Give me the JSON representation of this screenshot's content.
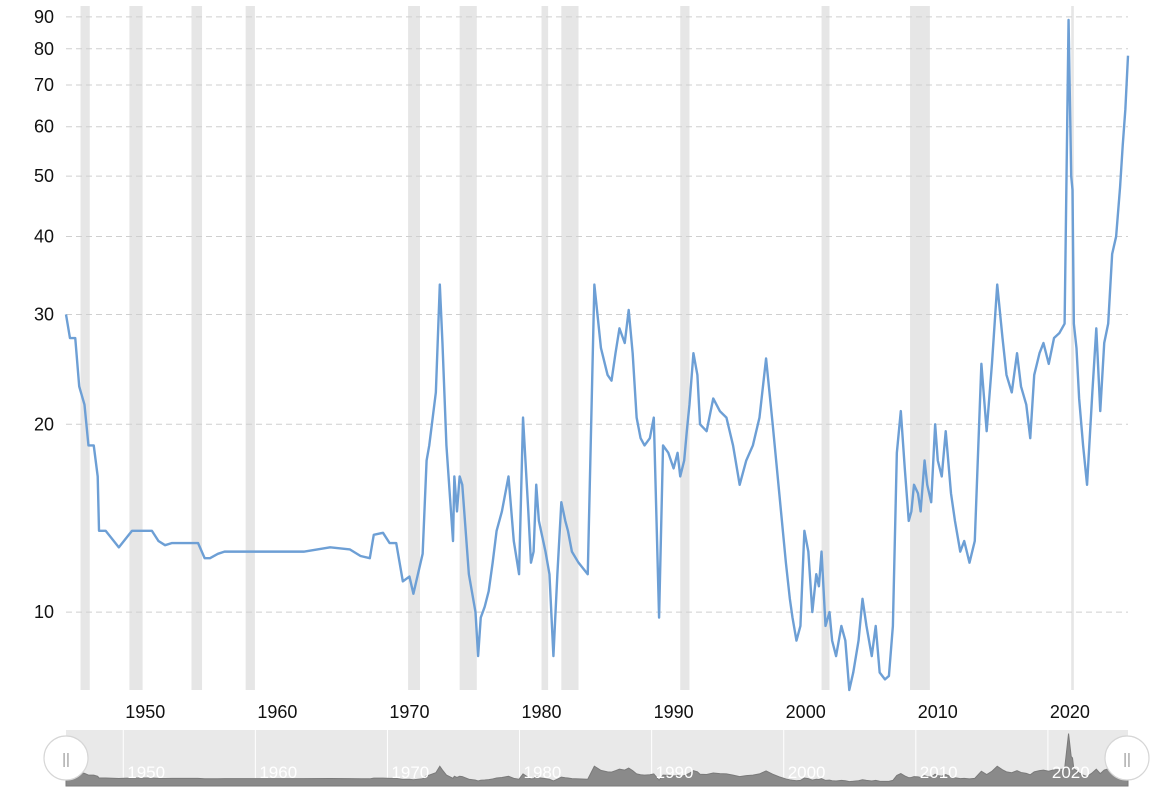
{
  "chart_data": {
    "type": "line",
    "title": "",
    "xlabel": "",
    "ylabel": "",
    "y_scale": "log",
    "xlim": [
      1944,
      2024.4
    ],
    "ylim": [
      7.5,
      93
    ],
    "grid": {
      "y": true,
      "x": false,
      "style": "dashed"
    },
    "legend": "none",
    "x_ticks": [
      1950,
      1960,
      1970,
      1980,
      1990,
      2000,
      2010,
      2020
    ],
    "x_tick_labels": [
      "1950",
      "1960",
      "1970",
      "1980",
      "1990",
      "2000",
      "2010",
      "2020"
    ],
    "y_ticks": [
      10,
      20,
      30,
      40,
      50,
      60,
      70,
      80,
      90
    ],
    "y_tick_labels": [
      "10",
      "20",
      "30",
      "40",
      "50",
      "60",
      "70",
      "80",
      "90"
    ],
    "recession_bands": [
      [
        1945.1,
        1945.8
      ],
      [
        1948.8,
        1949.8
      ],
      [
        1953.5,
        1954.3
      ],
      [
        1957.6,
        1958.3
      ],
      [
        1969.9,
        1970.8
      ],
      [
        1973.8,
        1975.1
      ],
      [
        1980.0,
        1980.5
      ],
      [
        1981.5,
        1982.8
      ],
      [
        1990.5,
        1991.2
      ],
      [
        2001.2,
        2001.8
      ],
      [
        2007.9,
        2009.4
      ],
      [
        2020.1,
        2020.3
      ]
    ],
    "series": [
      {
        "name": "",
        "color": "#6d9fd5",
        "x": [
          1944.0,
          1944.3,
          1944.7,
          1945.0,
          1945.4,
          1945.7,
          1946.1,
          1946.4,
          1946.5,
          1947.0,
          1948.0,
          1949.0,
          1950.5,
          1951.0,
          1951.5,
          1952.0,
          1954.0,
          1954.5,
          1954.9,
          1955.5,
          1956.0,
          1958.0,
          1962.0,
          1964.0,
          1965.5,
          1966.3,
          1967.0,
          1967.3,
          1968.0,
          1968.5,
          1969.0,
          1969.5,
          1970.0,
          1970.3,
          1971.0,
          1971.3,
          1971.5,
          1972.0,
          1972.3,
          1972.5,
          1972.8,
          1973.3,
          1973.4,
          1973.6,
          1973.8,
          1974.0,
          1974.5,
          1975.0,
          1975.2,
          1975.4,
          1975.7,
          1976.0,
          1976.3,
          1976.6,
          1977.0,
          1977.5,
          1977.9,
          1978.3,
          1978.6,
          1979.0,
          1979.2,
          1979.4,
          1979.6,
          1979.8,
          1980.3,
          1980.6,
          1980.9,
          1981.2,
          1981.5,
          1981.8,
          1982.0,
          1982.3,
          1982.8,
          1983.5,
          1984.0,
          1984.5,
          1985.0,
          1985.3,
          1985.6,
          1985.9,
          1986.3,
          1986.6,
          1986.9,
          1987.2,
          1987.5,
          1987.8,
          1988.2,
          1988.5,
          1988.9,
          1989.2,
          1989.6,
          1990.0,
          1990.3,
          1990.5,
          1990.8,
          1991.0,
          1991.2,
          1991.5,
          1991.8,
          1992.0,
          1992.5,
          1993.0,
          1993.5,
          1994.0,
          1994.5,
          1995.0,
          1995.5,
          1996.0,
          1996.5,
          1997.0,
          1997.5,
          1998.0,
          1998.5,
          1998.8,
          1999.0,
          1999.3,
          1999.6,
          1999.9,
          2000.2,
          2000.5,
          2000.8,
          2001.0,
          2001.2,
          2001.5,
          2001.8,
          2002.0,
          2002.3,
          2002.7,
          2003.0,
          2003.3,
          2003.6,
          2004.0,
          2004.3,
          2004.6,
          2005.0,
          2005.3,
          2005.6,
          2006.0,
          2006.3,
          2006.6,
          2006.9,
          2007.2,
          2007.5,
          2007.8,
          2008.0,
          2008.2,
          2008.5,
          2008.7,
          2009.0,
          2009.2,
          2009.5,
          2009.8,
          2010.0,
          2010.3,
          2010.6,
          2011.0,
          2011.3,
          2011.7,
          2012.0,
          2012.4,
          2012.8,
          2013.3,
          2013.7,
          2014.1,
          2014.5,
          2014.9,
          2015.2,
          2015.6,
          2016.0,
          2016.3,
          2016.7,
          2017.0,
          2017.3,
          2017.7,
          2018.0,
          2018.4,
          2018.8,
          2019.2,
          2019.6,
          2019.9,
          2020.1,
          2020.2,
          2020.3,
          2020.5,
          2020.7,
          2021.0,
          2021.3,
          2021.7,
          2022.0,
          2022.3,
          2022.6,
          2022.9,
          2023.2,
          2023.5,
          2023.8,
          2024.0,
          2024.2,
          2024.4
        ],
        "values": [
          30.0,
          27.5,
          27.5,
          23.0,
          21.5,
          18.5,
          18.5,
          16.5,
          13.5,
          13.5,
          12.7,
          13.5,
          13.5,
          13.0,
          12.8,
          12.9,
          12.9,
          12.2,
          12.2,
          12.4,
          12.5,
          12.5,
          12.5,
          12.7,
          12.6,
          12.3,
          12.2,
          13.3,
          13.4,
          12.9,
          12.9,
          11.2,
          11.4,
          10.7,
          12.4,
          17.5,
          18.5,
          22.5,
          33.5,
          27.0,
          18.5,
          13.0,
          16.5,
          14.5,
          16.5,
          16.0,
          11.5,
          10.0,
          8.5,
          9.8,
          10.2,
          10.8,
          12.0,
          13.5,
          14.5,
          16.5,
          13.0,
          11.5,
          20.5,
          14.5,
          12.0,
          12.5,
          16.0,
          14.0,
          12.5,
          11.5,
          8.5,
          11.5,
          15.0,
          14.0,
          13.5,
          12.5,
          12.0,
          11.5,
          33.5,
          26.5,
          24.0,
          23.5,
          26.0,
          28.5,
          27.0,
          30.5,
          26.0,
          20.5,
          19.0,
          18.5,
          19.0,
          20.5,
          9.8,
          18.5,
          18.0,
          17.0,
          18.0,
          16.5,
          17.5,
          19.5,
          21.5,
          26.0,
          24.0,
          20.0,
          19.5,
          22.0,
          21.0,
          20.5,
          18.5,
          16.0,
          17.5,
          18.5,
          20.5,
          25.5,
          20.0,
          15.5,
          12.0,
          10.5,
          9.8,
          9.0,
          9.5,
          13.5,
          12.5,
          10.0,
          11.5,
          11.0,
          12.5,
          9.5,
          10.0,
          9.0,
          8.5,
          9.5,
          9.0,
          7.5,
          8.0,
          9.0,
          10.5,
          9.5,
          8.5,
          9.5,
          8.0,
          7.8,
          7.9,
          9.5,
          18.0,
          21.0,
          17.0,
          14.0,
          14.5,
          16.0,
          15.5,
          14.5,
          17.5,
          16.0,
          15.0,
          20.0,
          17.5,
          16.5,
          19.5,
          15.5,
          14.0,
          12.5,
          13.0,
          12.0,
          13.0,
          25.0,
          19.5,
          25.0,
          33.5,
          27.5,
          24.0,
          22.5,
          26.0,
          23.0,
          21.5,
          19.0,
          24.0,
          26.0,
          27.0,
          25.0,
          27.5,
          28.0,
          29.0,
          89.0,
          50.0,
          47.5,
          29.0,
          26.5,
          22.0,
          18.5,
          16.0,
          22.5,
          28.5,
          21.0,
          27.0,
          29.0,
          37.5,
          40.0,
          48.0,
          56.0,
          64.0,
          78.0
        ]
      }
    ],
    "navigator": {
      "labels": [
        "1950",
        "1960",
        "1970",
        "1980",
        "1990",
        "2000",
        "2010",
        "2020"
      ],
      "left_handle_label": "||",
      "right_handle_label": "||"
    }
  }
}
